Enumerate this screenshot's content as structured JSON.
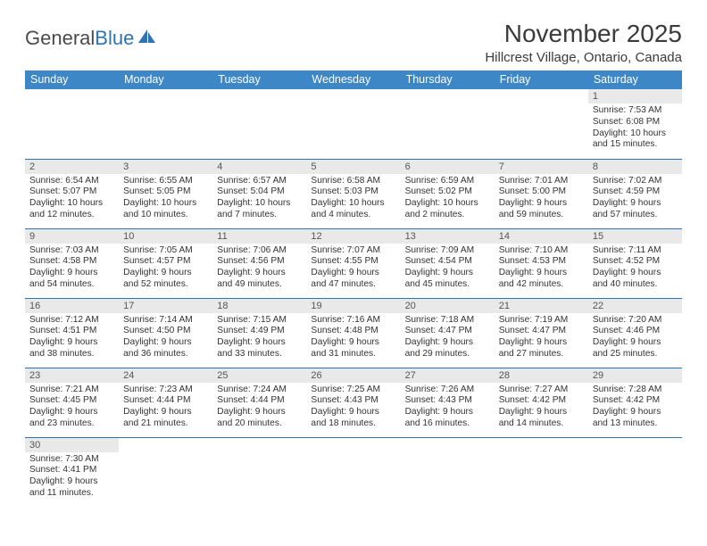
{
  "logo": {
    "text1": "General",
    "text2": "Blue"
  },
  "title": "November 2025",
  "location": "Hillcrest Village, Ontario, Canada",
  "weekdays": [
    "Sunday",
    "Monday",
    "Tuesday",
    "Wednesday",
    "Thursday",
    "Friday",
    "Saturday"
  ],
  "colors": {
    "header_bg": "#3d87c7",
    "header_fg": "#ffffff",
    "border": "#2e74b5",
    "daynum_bg": "#e9e9e9",
    "text": "#333333"
  },
  "typography": {
    "title_fontsize": 28,
    "subtitle_fontsize": 15,
    "header_fontsize": 12.5,
    "cell_fontsize": 10.2,
    "daynum_fontsize": 11
  },
  "weeks": [
    [
      null,
      null,
      null,
      null,
      null,
      null,
      {
        "day": 1,
        "sunrise": "7:53 AM",
        "sunset": "6:08 PM",
        "daylight": "10 hours and 15 minutes."
      }
    ],
    [
      {
        "day": 2,
        "sunrise": "6:54 AM",
        "sunset": "5:07 PM",
        "daylight": "10 hours and 12 minutes."
      },
      {
        "day": 3,
        "sunrise": "6:55 AM",
        "sunset": "5:05 PM",
        "daylight": "10 hours and 10 minutes."
      },
      {
        "day": 4,
        "sunrise": "6:57 AM",
        "sunset": "5:04 PM",
        "daylight": "10 hours and 7 minutes."
      },
      {
        "day": 5,
        "sunrise": "6:58 AM",
        "sunset": "5:03 PM",
        "daylight": "10 hours and 4 minutes."
      },
      {
        "day": 6,
        "sunrise": "6:59 AM",
        "sunset": "5:02 PM",
        "daylight": "10 hours and 2 minutes."
      },
      {
        "day": 7,
        "sunrise": "7:01 AM",
        "sunset": "5:00 PM",
        "daylight": "9 hours and 59 minutes."
      },
      {
        "day": 8,
        "sunrise": "7:02 AM",
        "sunset": "4:59 PM",
        "daylight": "9 hours and 57 minutes."
      }
    ],
    [
      {
        "day": 9,
        "sunrise": "7:03 AM",
        "sunset": "4:58 PM",
        "daylight": "9 hours and 54 minutes."
      },
      {
        "day": 10,
        "sunrise": "7:05 AM",
        "sunset": "4:57 PM",
        "daylight": "9 hours and 52 minutes."
      },
      {
        "day": 11,
        "sunrise": "7:06 AM",
        "sunset": "4:56 PM",
        "daylight": "9 hours and 49 minutes."
      },
      {
        "day": 12,
        "sunrise": "7:07 AM",
        "sunset": "4:55 PM",
        "daylight": "9 hours and 47 minutes."
      },
      {
        "day": 13,
        "sunrise": "7:09 AM",
        "sunset": "4:54 PM",
        "daylight": "9 hours and 45 minutes."
      },
      {
        "day": 14,
        "sunrise": "7:10 AM",
        "sunset": "4:53 PM",
        "daylight": "9 hours and 42 minutes."
      },
      {
        "day": 15,
        "sunrise": "7:11 AM",
        "sunset": "4:52 PM",
        "daylight": "9 hours and 40 minutes."
      }
    ],
    [
      {
        "day": 16,
        "sunrise": "7:12 AM",
        "sunset": "4:51 PM",
        "daylight": "9 hours and 38 minutes."
      },
      {
        "day": 17,
        "sunrise": "7:14 AM",
        "sunset": "4:50 PM",
        "daylight": "9 hours and 36 minutes."
      },
      {
        "day": 18,
        "sunrise": "7:15 AM",
        "sunset": "4:49 PM",
        "daylight": "9 hours and 33 minutes."
      },
      {
        "day": 19,
        "sunrise": "7:16 AM",
        "sunset": "4:48 PM",
        "daylight": "9 hours and 31 minutes."
      },
      {
        "day": 20,
        "sunrise": "7:18 AM",
        "sunset": "4:47 PM",
        "daylight": "9 hours and 29 minutes."
      },
      {
        "day": 21,
        "sunrise": "7:19 AM",
        "sunset": "4:47 PM",
        "daylight": "9 hours and 27 minutes."
      },
      {
        "day": 22,
        "sunrise": "7:20 AM",
        "sunset": "4:46 PM",
        "daylight": "9 hours and 25 minutes."
      }
    ],
    [
      {
        "day": 23,
        "sunrise": "7:21 AM",
        "sunset": "4:45 PM",
        "daylight": "9 hours and 23 minutes."
      },
      {
        "day": 24,
        "sunrise": "7:23 AM",
        "sunset": "4:44 PM",
        "daylight": "9 hours and 21 minutes."
      },
      {
        "day": 25,
        "sunrise": "7:24 AM",
        "sunset": "4:44 PM",
        "daylight": "9 hours and 20 minutes."
      },
      {
        "day": 26,
        "sunrise": "7:25 AM",
        "sunset": "4:43 PM",
        "daylight": "9 hours and 18 minutes."
      },
      {
        "day": 27,
        "sunrise": "7:26 AM",
        "sunset": "4:43 PM",
        "daylight": "9 hours and 16 minutes."
      },
      {
        "day": 28,
        "sunrise": "7:27 AM",
        "sunset": "4:42 PM",
        "daylight": "9 hours and 14 minutes."
      },
      {
        "day": 29,
        "sunrise": "7:28 AM",
        "sunset": "4:42 PM",
        "daylight": "9 hours and 13 minutes."
      }
    ],
    [
      {
        "day": 30,
        "sunrise": "7:30 AM",
        "sunset": "4:41 PM",
        "daylight": "9 hours and 11 minutes."
      },
      null,
      null,
      null,
      null,
      null,
      null
    ]
  ],
  "labels": {
    "sunrise": "Sunrise: ",
    "sunset": "Sunset: ",
    "daylight": "Daylight: "
  }
}
